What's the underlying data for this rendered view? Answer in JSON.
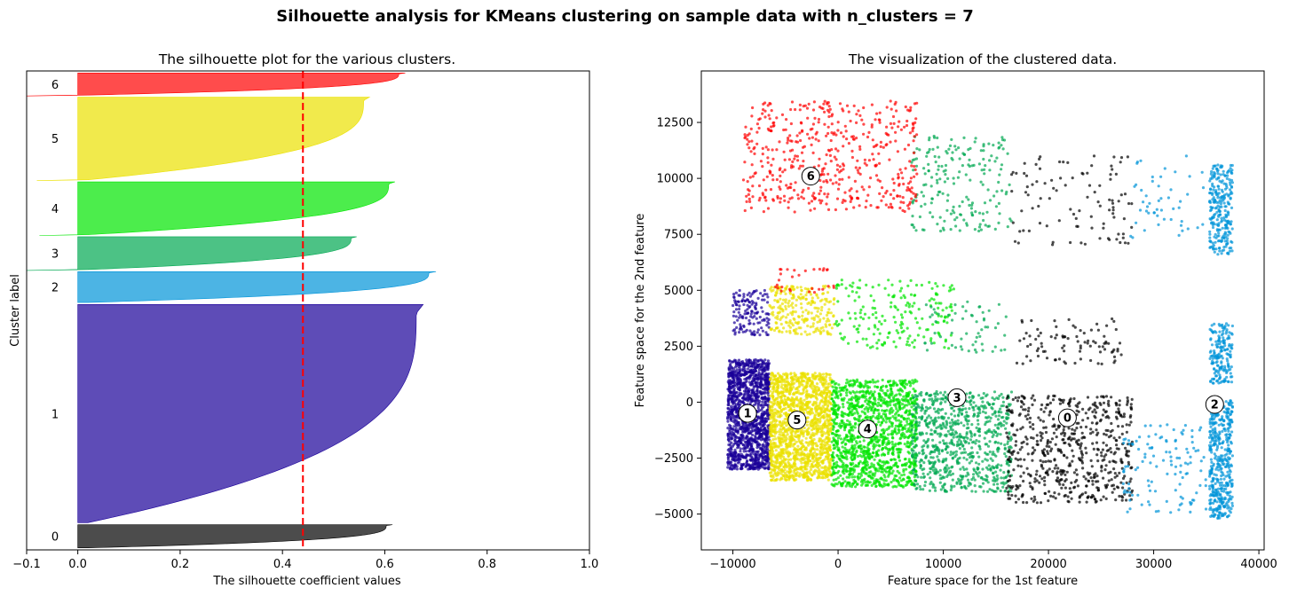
{
  "figure_title": "Silhouette analysis for KMeans clustering on sample data with n_clusters = 7",
  "chart_data": [
    {
      "type": "silhouette",
      "title": "The silhouette plot for the various clusters.",
      "xlabel": "The silhouette coefficient values",
      "ylabel": "Cluster label",
      "xlim": [
        -0.1,
        1.0
      ],
      "xticks": [
        -0.1,
        0,
        0.2,
        0.4,
        0.6,
        0.8,
        1.0
      ],
      "xtick_labels": [
        "−0.1",
        "0.0",
        "0.2",
        "0.4",
        "0.6",
        "0.8",
        "1.0"
      ],
      "average_silhouette_score": 0.44,
      "average_line_color": "#ff0000",
      "clusters": [
        {
          "label": "0",
          "size": 450,
          "max": 0.615,
          "min": 0.0,
          "color": "#000000"
        },
        {
          "label": "1",
          "size": 4250,
          "max": 0.675,
          "min": 0.0,
          "color": "#1a0099"
        },
        {
          "label": "2",
          "size": 600,
          "max": 0.7,
          "min": 0.0,
          "color": "#0094d9"
        },
        {
          "label": "3",
          "size": 640,
          "max": 0.545,
          "min": -0.1,
          "color": "#00a851"
        },
        {
          "label": "4",
          "size": 1030,
          "max": 0.62,
          "min": -0.075,
          "color": "#00e600"
        },
        {
          "label": "5",
          "size": 1610,
          "max": 0.57,
          "min": -0.08,
          "color": "#ebe100"
        },
        {
          "label": "6",
          "size": 430,
          "max": 0.64,
          "min": -0.1,
          "color": "#ff0000"
        }
      ]
    },
    {
      "type": "scatter",
      "title": "The visualization of the clustered data.",
      "xlabel": "Feature space for the 1st feature",
      "ylabel": "Feature space for the 2nd feature",
      "xlim": [
        -13000,
        40500
      ],
      "ylim": [
        -6600,
        14800
      ],
      "xticks": [
        -10000,
        0,
        10000,
        20000,
        30000,
        40000
      ],
      "xtick_labels": [
        "−10000",
        "0",
        "10000",
        "20000",
        "30000",
        "40000"
      ],
      "yticks": [
        -5000,
        -2500,
        0,
        2500,
        5000,
        7500,
        10000,
        12500
      ],
      "ytick_labels": [
        "−5000",
        "−2500",
        "0",
        "2500",
        "5000",
        "7500",
        "10000",
        "12500"
      ],
      "regions": [
        {
          "cluster": "1",
          "color": "#1a0099",
          "x": [
            -10500,
            -6500
          ],
          "y": [
            -3000,
            1900
          ],
          "n": 1400
        },
        {
          "cluster": "1",
          "color": "#1a0099",
          "x": [
            -10000,
            -6500
          ],
          "y": [
            3000,
            5000
          ],
          "n": 140
        },
        {
          "cluster": "5",
          "color": "#ebe100",
          "x": [
            -6500,
            -600
          ],
          "y": [
            -3500,
            1300
          ],
          "n": 1500
        },
        {
          "cluster": "5",
          "color": "#ebe100",
          "x": [
            -6500,
            -300
          ],
          "y": [
            3000,
            5200
          ],
          "n": 250
        },
        {
          "cluster": "4",
          "color": "#00e600",
          "x": [
            -600,
            7500
          ],
          "y": [
            -3800,
            1000
          ],
          "n": 1300
        },
        {
          "cluster": "4",
          "color": "#00e600",
          "x": [
            -300,
            11000
          ],
          "y": [
            2400,
            5500
          ],
          "n": 200
        },
        {
          "cluster": "3",
          "color": "#00a851",
          "x": [
            7000,
            16500
          ],
          "y": [
            -4000,
            500
          ],
          "n": 800
        },
        {
          "cluster": "3",
          "color": "#00a851",
          "x": [
            7000,
            16500
          ],
          "y": [
            7600,
            12000
          ],
          "n": 200
        },
        {
          "cluster": "3",
          "color": "#00a851",
          "x": [
            8000,
            16000
          ],
          "y": [
            2200,
            4500
          ],
          "n": 60
        },
        {
          "cluster": "0",
          "color": "#000000",
          "x": [
            16000,
            28000
          ],
          "y": [
            -4500,
            300
          ],
          "n": 600
        },
        {
          "cluster": "0",
          "color": "#000000",
          "x": [
            16500,
            28000
          ],
          "y": [
            7000,
            11000
          ],
          "n": 100
        },
        {
          "cluster": "0",
          "color": "#000000",
          "x": [
            17000,
            27000
          ],
          "y": [
            1700,
            3800
          ],
          "n": 90
        },
        {
          "cluster": "2",
          "color": "#0094d9",
          "x": [
            27000,
            35000
          ],
          "y": [
            -5000,
            -1000
          ],
          "n": 120
        },
        {
          "cluster": "2",
          "color": "#0094d9",
          "x": [
            35300,
            37500
          ],
          "y": [
            -5200,
            100
          ],
          "n": 450
        },
        {
          "cluster": "2",
          "color": "#0094d9",
          "x": [
            35300,
            37500
          ],
          "y": [
            800,
            3600
          ],
          "n": 180
        },
        {
          "cluster": "2",
          "color": "#0094d9",
          "x": [
            35300,
            37500
          ],
          "y": [
            6600,
            10600
          ],
          "n": 260
        },
        {
          "cluster": "2",
          "color": "#0094d9",
          "x": [
            27500,
            35000
          ],
          "y": [
            7200,
            11000
          ],
          "n": 50
        },
        {
          "cluster": "6",
          "color": "#ff0000",
          "x": [
            -9000,
            7500
          ],
          "y": [
            8500,
            13500
          ],
          "n": 500
        },
        {
          "cluster": "6",
          "color": "#ff0000",
          "x": [
            -6000,
            0
          ],
          "y": [
            4900,
            6000
          ],
          "n": 30
        }
      ],
      "centers": [
        {
          "label": "0",
          "x": 21800,
          "y": -700
        },
        {
          "label": "1",
          "x": -8600,
          "y": -500
        },
        {
          "label": "2",
          "x": 35800,
          "y": -100
        },
        {
          "label": "3",
          "x": 11300,
          "y": 200
        },
        {
          "label": "4",
          "x": 2800,
          "y": -1200
        },
        {
          "label": "5",
          "x": -3900,
          "y": -800
        },
        {
          "label": "6",
          "x": -2600,
          "y": 10100
        }
      ]
    }
  ]
}
